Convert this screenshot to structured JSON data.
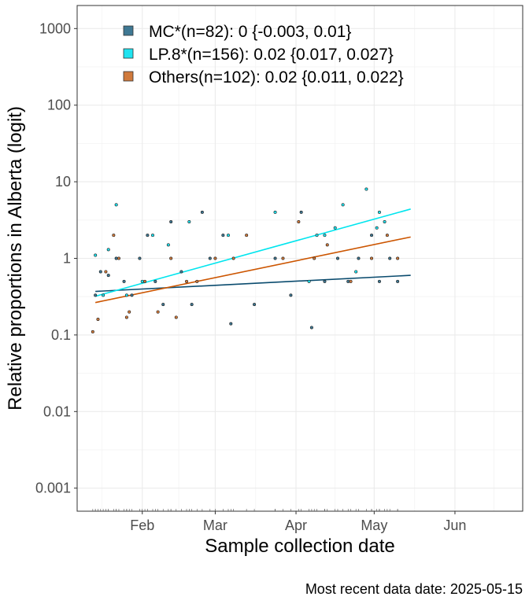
{
  "chart_data": {
    "type": "scatter",
    "xlabel": "Sample collection date",
    "ylabel": "Relative proportions in Alberta (logit)",
    "caption": "Most recent data date: 2025-05-15",
    "y_scale": "log",
    "ylim": [
      0.0005,
      2000
    ],
    "xlim": [
      "2025-01-07",
      "2025-06-27"
    ],
    "x_ticks": [
      {
        "date": "2025-02-01",
        "label": "Feb"
      },
      {
        "date": "2025-03-01",
        "label": "Mar"
      },
      {
        "date": "2025-04-01",
        "label": "Apr"
      },
      {
        "date": "2025-05-01",
        "label": "May"
      },
      {
        "date": "2025-06-01",
        "label": "Jun"
      }
    ],
    "y_ticks": [
      {
        "value": 0.001,
        "label": "0.001"
      },
      {
        "value": 0.01,
        "label": "0.01"
      },
      {
        "value": 0.1,
        "label": "0.1"
      },
      {
        "value": 1,
        "label": "1"
      },
      {
        "value": 10,
        "label": "10"
      },
      {
        "value": 100,
        "label": "100"
      },
      {
        "value": 1000,
        "label": "1000"
      }
    ],
    "grid": true,
    "legend_position": "top-left",
    "series": [
      {
        "name": "MC*(n=82): 0 {-0.003, 0.01}",
        "color": "#0a4b6e",
        "fill": "#3f7893",
        "trend": [
          {
            "x": "2025-01-14",
            "y": 0.37
          },
          {
            "x": "2025-05-15",
            "y": 0.6
          }
        ],
        "points": [
          {
            "x": "2025-01-14",
            "y": 0.33
          },
          {
            "x": "2025-01-16",
            "y": 0.67
          },
          {
            "x": "2025-01-19",
            "y": 0.6
          },
          {
            "x": "2025-01-22",
            "y": 1.0
          },
          {
            "x": "2025-01-25",
            "y": 0.5
          },
          {
            "x": "2025-01-28",
            "y": 0.33
          },
          {
            "x": "2025-01-31",
            "y": 1.0
          },
          {
            "x": "2025-02-03",
            "y": 2.0
          },
          {
            "x": "2025-02-06",
            "y": 0.5
          },
          {
            "x": "2025-02-09",
            "y": 0.25
          },
          {
            "x": "2025-02-12",
            "y": 3.0
          },
          {
            "x": "2025-02-16",
            "y": 0.67
          },
          {
            "x": "2025-02-20",
            "y": 0.25
          },
          {
            "x": "2025-02-24",
            "y": 4.0
          },
          {
            "x": "2025-02-27",
            "y": 1.0
          },
          {
            "x": "2025-03-04",
            "y": 2.0
          },
          {
            "x": "2025-03-07",
            "y": 0.14
          },
          {
            "x": "2025-03-16",
            "y": 0.25
          },
          {
            "x": "2025-03-24",
            "y": 1.0
          },
          {
            "x": "2025-03-30",
            "y": 0.33
          },
          {
            "x": "2025-04-03",
            "y": 4.0
          },
          {
            "x": "2025-04-07",
            "y": 0.125
          },
          {
            "x": "2025-04-12",
            "y": 0.5
          },
          {
            "x": "2025-04-17",
            "y": 1.0
          },
          {
            "x": "2025-04-21",
            "y": 0.5
          },
          {
            "x": "2025-04-25",
            "y": 1.0
          },
          {
            "x": "2025-04-30",
            "y": 2.0
          },
          {
            "x": "2025-05-03",
            "y": 0.5
          },
          {
            "x": "2025-05-07",
            "y": 1.0
          },
          {
            "x": "2025-05-10",
            "y": 0.5
          }
        ]
      },
      {
        "name": "LP.8*(n=156): 0.02 {0.017, 0.027}",
        "color": "#00e5ee",
        "fill": "#1fe3f0",
        "trend": [
          {
            "x": "2025-01-14",
            "y": 0.32
          },
          {
            "x": "2025-05-15",
            "y": 4.4
          }
        ],
        "points": [
          {
            "x": "2025-01-14",
            "y": 1.1
          },
          {
            "x": "2025-01-17",
            "y": 0.33
          },
          {
            "x": "2025-01-19",
            "y": 1.3
          },
          {
            "x": "2025-01-22",
            "y": 5.0
          },
          {
            "x": "2025-01-26",
            "y": 0.33
          },
          {
            "x": "2025-02-01",
            "y": 0.5
          },
          {
            "x": "2025-02-05",
            "y": 2.0
          },
          {
            "x": "2025-02-11",
            "y": 1.5
          },
          {
            "x": "2025-02-19",
            "y": 3.0
          },
          {
            "x": "2025-03-06",
            "y": 2.0
          },
          {
            "x": "2025-03-24",
            "y": 4.0
          },
          {
            "x": "2025-04-06",
            "y": 0.5
          },
          {
            "x": "2025-04-09",
            "y": 2.0
          },
          {
            "x": "2025-04-12",
            "y": 2.0
          },
          {
            "x": "2025-04-16",
            "y": 2.5
          },
          {
            "x": "2025-04-19",
            "y": 5.0
          },
          {
            "x": "2025-04-24",
            "y": 0.67
          },
          {
            "x": "2025-04-28",
            "y": 8.0
          },
          {
            "x": "2025-05-02",
            "y": 2.5
          },
          {
            "x": "2025-05-03",
            "y": 4.0
          },
          {
            "x": "2025-05-05",
            "y": 3.0
          }
        ]
      },
      {
        "name": "Others(n=102): 0.02 {0.011, 0.022}",
        "color": "#cc5500",
        "fill": "#d07a3c",
        "trend": [
          {
            "x": "2025-01-14",
            "y": 0.265
          },
          {
            "x": "2025-05-15",
            "y": 1.9
          }
        ],
        "points": [
          {
            "x": "2025-01-13",
            "y": 0.11
          },
          {
            "x": "2025-01-15",
            "y": 0.16
          },
          {
            "x": "2025-01-18",
            "y": 0.67
          },
          {
            "x": "2025-01-21",
            "y": 2.0
          },
          {
            "x": "2025-01-23",
            "y": 1.0
          },
          {
            "x": "2025-01-26",
            "y": 0.17
          },
          {
            "x": "2025-01-27",
            "y": 0.2
          },
          {
            "x": "2025-02-02",
            "y": 0.5
          },
          {
            "x": "2025-02-07",
            "y": 0.2
          },
          {
            "x": "2025-02-12",
            "y": 1.0
          },
          {
            "x": "2025-02-14",
            "y": 0.17
          },
          {
            "x": "2025-02-18",
            "y": 0.5
          },
          {
            "x": "2025-02-22",
            "y": 0.5
          },
          {
            "x": "2025-03-01",
            "y": 1.0
          },
          {
            "x": "2025-03-08",
            "y": 1.0
          },
          {
            "x": "2025-03-13",
            "y": 2.0
          },
          {
            "x": "2025-03-27",
            "y": 1.0
          },
          {
            "x": "2025-04-02",
            "y": 3.0
          },
          {
            "x": "2025-04-08",
            "y": 1.0
          },
          {
            "x": "2025-04-13",
            "y": 1.5
          },
          {
            "x": "2025-04-22",
            "y": 0.5
          },
          {
            "x": "2025-04-30",
            "y": 1.0
          },
          {
            "x": "2025-05-06",
            "y": 2.0
          },
          {
            "x": "2025-05-10",
            "y": 1.0
          }
        ]
      }
    ]
  }
}
